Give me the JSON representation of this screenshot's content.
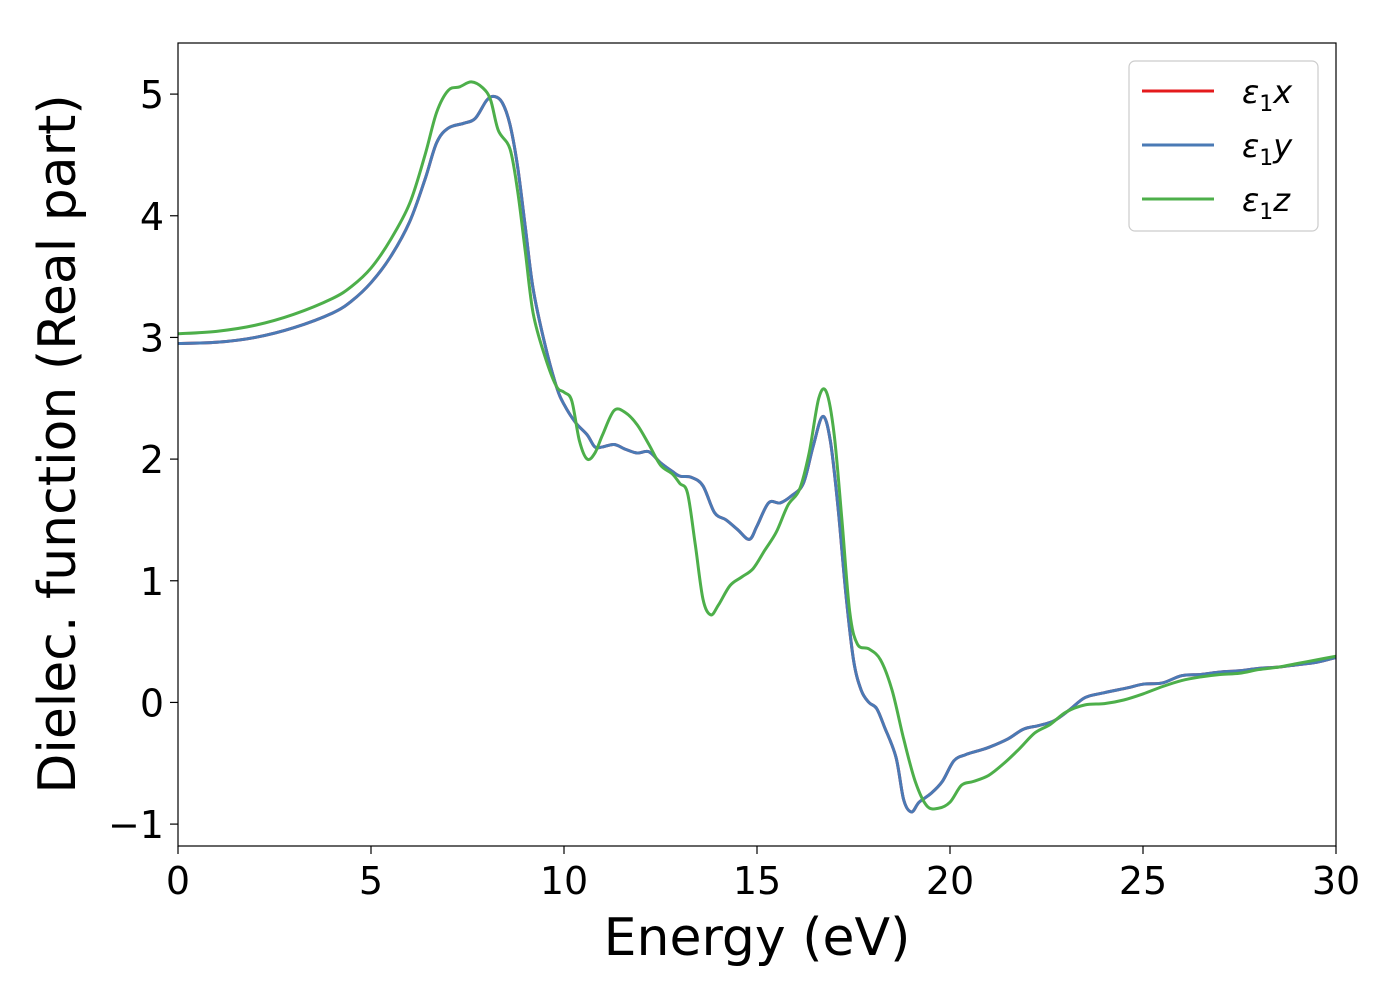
{
  "chart_data": {
    "type": "line",
    "title": "",
    "xlabel": "Energy (eV)",
    "ylabel": "Dielec. function (Real part)",
    "xlim": [
      0,
      30
    ],
    "ylim": [
      -1.18,
      5.42
    ],
    "xticks": [
      0,
      5,
      10,
      15,
      20,
      25,
      30
    ],
    "xtick_labels": [
      "0",
      "5",
      "10",
      "15",
      "20",
      "25",
      "30"
    ],
    "yticks": [
      -1,
      0,
      1,
      2,
      3,
      4,
      5
    ],
    "ytick_labels": [
      "−1",
      "0",
      "1",
      "2",
      "3",
      "4",
      "5"
    ],
    "grid": false,
    "legend_position": "top-right",
    "series": [
      {
        "name": "ε1x",
        "legend_base": "ε",
        "legend_sub": "1",
        "legend_suffix": "x",
        "color": "#e41a1c",
        "points": [
          [
            0,
            2.95
          ],
          [
            1,
            2.96
          ],
          [
            2,
            3.0
          ],
          [
            3,
            3.08
          ],
          [
            4,
            3.2
          ],
          [
            4.5,
            3.3
          ],
          [
            5,
            3.45
          ],
          [
            5.5,
            3.66
          ],
          [
            6,
            3.95
          ],
          [
            6.4,
            4.3
          ],
          [
            6.7,
            4.6
          ],
          [
            7.0,
            4.72
          ],
          [
            7.4,
            4.76
          ],
          [
            7.7,
            4.8
          ],
          [
            8.0,
            4.95
          ],
          [
            8.2,
            4.98
          ],
          [
            8.4,
            4.93
          ],
          [
            8.6,
            4.75
          ],
          [
            8.8,
            4.4
          ],
          [
            9.0,
            3.9
          ],
          [
            9.2,
            3.4
          ],
          [
            9.5,
            2.95
          ],
          [
            9.8,
            2.6
          ],
          [
            10.0,
            2.45
          ],
          [
            10.3,
            2.3
          ],
          [
            10.6,
            2.2
          ],
          [
            10.8,
            2.1
          ],
          [
            11.0,
            2.1
          ],
          [
            11.3,
            2.12
          ],
          [
            11.6,
            2.08
          ],
          [
            11.9,
            2.05
          ],
          [
            12.2,
            2.06
          ],
          [
            12.5,
            1.97
          ],
          [
            12.8,
            1.9
          ],
          [
            13.0,
            1.86
          ],
          [
            13.3,
            1.85
          ],
          [
            13.6,
            1.78
          ],
          [
            13.9,
            1.56
          ],
          [
            14.2,
            1.5
          ],
          [
            14.5,
            1.42
          ],
          [
            14.8,
            1.34
          ],
          [
            15.0,
            1.45
          ],
          [
            15.3,
            1.64
          ],
          [
            15.6,
            1.64
          ],
          [
            15.9,
            1.7
          ],
          [
            16.2,
            1.8
          ],
          [
            16.45,
            2.1
          ],
          [
            16.7,
            2.35
          ],
          [
            16.9,
            2.15
          ],
          [
            17.1,
            1.6
          ],
          [
            17.3,
            0.9
          ],
          [
            17.5,
            0.35
          ],
          [
            17.7,
            0.1
          ],
          [
            17.9,
            0.0
          ],
          [
            18.1,
            -0.05
          ],
          [
            18.3,
            -0.2
          ],
          [
            18.6,
            -0.45
          ],
          [
            18.8,
            -0.8
          ],
          [
            19.0,
            -0.9
          ],
          [
            19.2,
            -0.82
          ],
          [
            19.5,
            -0.75
          ],
          [
            19.8,
            -0.65
          ],
          [
            20.1,
            -0.48
          ],
          [
            20.4,
            -0.43
          ],
          [
            20.7,
            -0.4
          ],
          [
            21.0,
            -0.37
          ],
          [
            21.5,
            -0.3
          ],
          [
            21.9,
            -0.22
          ],
          [
            22.3,
            -0.19
          ],
          [
            22.7,
            -0.15
          ],
          [
            23.1,
            -0.06
          ],
          [
            23.5,
            0.04
          ],
          [
            24.0,
            0.08
          ],
          [
            24.6,
            0.12
          ],
          [
            25.0,
            0.15
          ],
          [
            25.5,
            0.16
          ],
          [
            26.0,
            0.22
          ],
          [
            26.5,
            0.23
          ],
          [
            27.0,
            0.25
          ],
          [
            27.5,
            0.26
          ],
          [
            28.0,
            0.28
          ],
          [
            28.5,
            0.29
          ],
          [
            29.0,
            0.31
          ],
          [
            29.5,
            0.33
          ],
          [
            30.0,
            0.37
          ]
        ]
      },
      {
        "name": "ε1y",
        "legend_base": "ε",
        "legend_sub": "1",
        "legend_suffix": "y",
        "color": "#4a7ab5",
        "points": [
          [
            0,
            2.95
          ],
          [
            1,
            2.96
          ],
          [
            2,
            3.0
          ],
          [
            3,
            3.08
          ],
          [
            4,
            3.2
          ],
          [
            4.5,
            3.3
          ],
          [
            5,
            3.45
          ],
          [
            5.5,
            3.66
          ],
          [
            6,
            3.95
          ],
          [
            6.4,
            4.3
          ],
          [
            6.7,
            4.6
          ],
          [
            7.0,
            4.72
          ],
          [
            7.4,
            4.76
          ],
          [
            7.7,
            4.8
          ],
          [
            8.0,
            4.95
          ],
          [
            8.2,
            4.98
          ],
          [
            8.4,
            4.93
          ],
          [
            8.6,
            4.75
          ],
          [
            8.8,
            4.4
          ],
          [
            9.0,
            3.9
          ],
          [
            9.2,
            3.4
          ],
          [
            9.5,
            2.95
          ],
          [
            9.8,
            2.6
          ],
          [
            10.0,
            2.45
          ],
          [
            10.3,
            2.3
          ],
          [
            10.6,
            2.2
          ],
          [
            10.8,
            2.1
          ],
          [
            11.0,
            2.1
          ],
          [
            11.3,
            2.12
          ],
          [
            11.6,
            2.08
          ],
          [
            11.9,
            2.05
          ],
          [
            12.2,
            2.06
          ],
          [
            12.5,
            1.97
          ],
          [
            12.8,
            1.9
          ],
          [
            13.0,
            1.86
          ],
          [
            13.3,
            1.85
          ],
          [
            13.6,
            1.78
          ],
          [
            13.9,
            1.56
          ],
          [
            14.2,
            1.5
          ],
          [
            14.5,
            1.42
          ],
          [
            14.8,
            1.34
          ],
          [
            15.0,
            1.45
          ],
          [
            15.3,
            1.64
          ],
          [
            15.6,
            1.64
          ],
          [
            15.9,
            1.7
          ],
          [
            16.2,
            1.8
          ],
          [
            16.45,
            2.1
          ],
          [
            16.7,
            2.35
          ],
          [
            16.9,
            2.15
          ],
          [
            17.1,
            1.6
          ],
          [
            17.3,
            0.9
          ],
          [
            17.5,
            0.35
          ],
          [
            17.7,
            0.1
          ],
          [
            17.9,
            0.0
          ],
          [
            18.1,
            -0.05
          ],
          [
            18.3,
            -0.2
          ],
          [
            18.6,
            -0.45
          ],
          [
            18.8,
            -0.8
          ],
          [
            19.0,
            -0.9
          ],
          [
            19.2,
            -0.82
          ],
          [
            19.5,
            -0.75
          ],
          [
            19.8,
            -0.65
          ],
          [
            20.1,
            -0.48
          ],
          [
            20.4,
            -0.43
          ],
          [
            20.7,
            -0.4
          ],
          [
            21.0,
            -0.37
          ],
          [
            21.5,
            -0.3
          ],
          [
            21.9,
            -0.22
          ],
          [
            22.3,
            -0.19
          ],
          [
            22.7,
            -0.15
          ],
          [
            23.1,
            -0.06
          ],
          [
            23.5,
            0.04
          ],
          [
            24.0,
            0.08
          ],
          [
            24.6,
            0.12
          ],
          [
            25.0,
            0.15
          ],
          [
            25.5,
            0.16
          ],
          [
            26.0,
            0.22
          ],
          [
            26.5,
            0.23
          ],
          [
            27.0,
            0.25
          ],
          [
            27.5,
            0.26
          ],
          [
            28.0,
            0.28
          ],
          [
            28.5,
            0.29
          ],
          [
            29.0,
            0.31
          ],
          [
            29.5,
            0.33
          ],
          [
            30.0,
            0.37
          ]
        ]
      },
      {
        "name": "ε1z",
        "legend_base": "ε",
        "legend_sub": "1",
        "legend_suffix": "z",
        "color": "#4daf4a",
        "points": [
          [
            0,
            3.03
          ],
          [
            1,
            3.05
          ],
          [
            2,
            3.1
          ],
          [
            3,
            3.19
          ],
          [
            4,
            3.32
          ],
          [
            4.5,
            3.42
          ],
          [
            5,
            3.57
          ],
          [
            5.5,
            3.8
          ],
          [
            6,
            4.1
          ],
          [
            6.4,
            4.5
          ],
          [
            6.7,
            4.85
          ],
          [
            7.0,
            5.03
          ],
          [
            7.3,
            5.06
          ],
          [
            7.6,
            5.1
          ],
          [
            7.9,
            5.05
          ],
          [
            8.1,
            4.95
          ],
          [
            8.3,
            4.7
          ],
          [
            8.6,
            4.55
          ],
          [
            8.8,
            4.2
          ],
          [
            9.0,
            3.7
          ],
          [
            9.2,
            3.2
          ],
          [
            9.5,
            2.85
          ],
          [
            9.8,
            2.6
          ],
          [
            10.0,
            2.55
          ],
          [
            10.2,
            2.48
          ],
          [
            10.4,
            2.15
          ],
          [
            10.6,
            2.0
          ],
          [
            10.8,
            2.05
          ],
          [
            11.0,
            2.2
          ],
          [
            11.3,
            2.4
          ],
          [
            11.6,
            2.38
          ],
          [
            11.9,
            2.28
          ],
          [
            12.2,
            2.12
          ],
          [
            12.5,
            1.95
          ],
          [
            12.8,
            1.88
          ],
          [
            13.0,
            1.8
          ],
          [
            13.2,
            1.72
          ],
          [
            13.4,
            1.3
          ],
          [
            13.6,
            0.85
          ],
          [
            13.8,
            0.72
          ],
          [
            14.0,
            0.8
          ],
          [
            14.3,
            0.96
          ],
          [
            14.6,
            1.03
          ],
          [
            14.9,
            1.1
          ],
          [
            15.2,
            1.25
          ],
          [
            15.5,
            1.4
          ],
          [
            15.8,
            1.62
          ],
          [
            16.1,
            1.75
          ],
          [
            16.35,
            2.05
          ],
          [
            16.6,
            2.5
          ],
          [
            16.8,
            2.55
          ],
          [
            17.0,
            2.2
          ],
          [
            17.2,
            1.5
          ],
          [
            17.4,
            0.75
          ],
          [
            17.6,
            0.48
          ],
          [
            17.9,
            0.44
          ],
          [
            18.2,
            0.35
          ],
          [
            18.5,
            0.1
          ],
          [
            18.8,
            -0.3
          ],
          [
            19.1,
            -0.65
          ],
          [
            19.4,
            -0.85
          ],
          [
            19.7,
            -0.87
          ],
          [
            20.0,
            -0.82
          ],
          [
            20.3,
            -0.68
          ],
          [
            20.6,
            -0.65
          ],
          [
            21.0,
            -0.6
          ],
          [
            21.4,
            -0.5
          ],
          [
            21.8,
            -0.38
          ],
          [
            22.2,
            -0.25
          ],
          [
            22.6,
            -0.18
          ],
          [
            23.0,
            -0.08
          ],
          [
            23.5,
            -0.02
          ],
          [
            24.0,
            -0.01
          ],
          [
            24.5,
            0.02
          ],
          [
            25.0,
            0.07
          ],
          [
            25.5,
            0.13
          ],
          [
            26.0,
            0.18
          ],
          [
            26.5,
            0.21
          ],
          [
            27.0,
            0.23
          ],
          [
            27.5,
            0.24
          ],
          [
            28.0,
            0.27
          ],
          [
            28.5,
            0.29
          ],
          [
            29.0,
            0.32
          ],
          [
            29.5,
            0.35
          ],
          [
            30.0,
            0.38
          ]
        ]
      }
    ]
  }
}
